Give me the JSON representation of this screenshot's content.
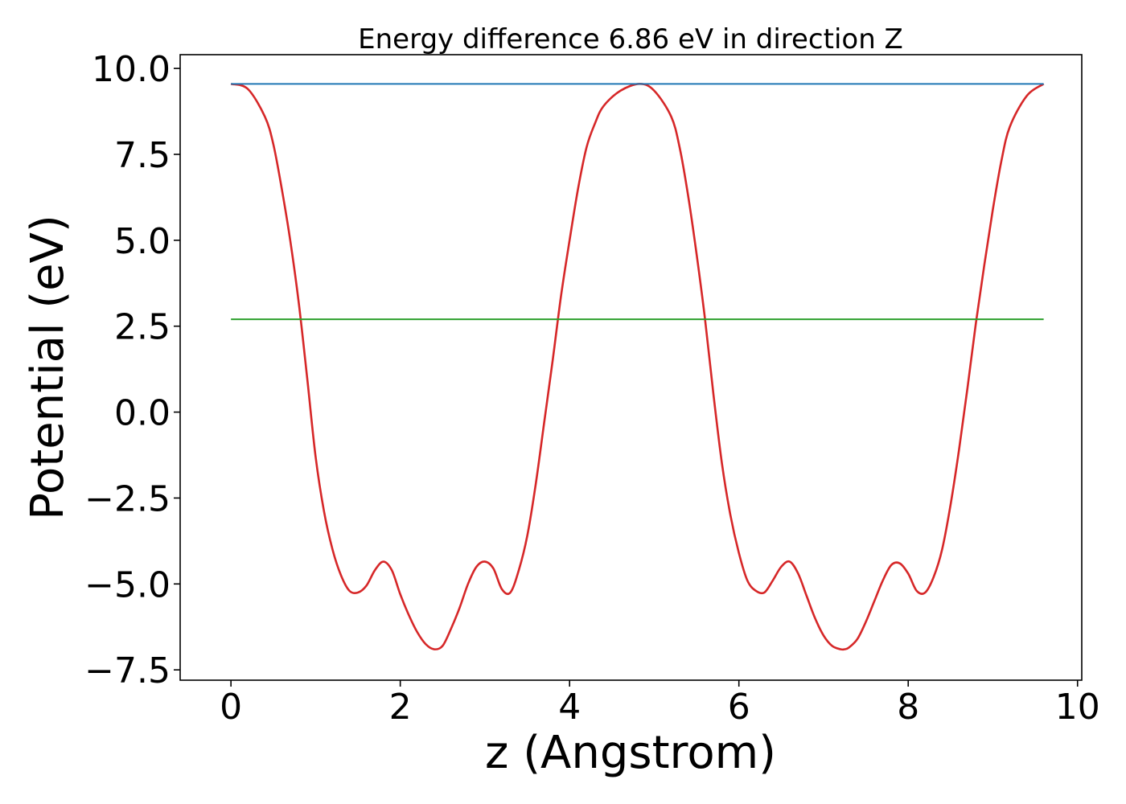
{
  "chart_data": {
    "type": "line",
    "title": "Energy difference 6.86 eV in direction Z",
    "xlabel": "z (Angstrom)",
    "ylabel": "Potential (eV)",
    "xlim": [
      -0.6,
      10.05
    ],
    "ylim": [
      -7.8,
      10.4
    ],
    "xticks": [
      0,
      2,
      4,
      6,
      8,
      10
    ],
    "xtick_labels": [
      "0",
      "2",
      "4",
      "6",
      "8",
      "10"
    ],
    "yticks": [
      10.0,
      7.5,
      5.0,
      2.5,
      0.0,
      -2.5,
      -5.0,
      -7.5
    ],
    "ytick_labels": [
      "10.0",
      "7.5",
      "5.0",
      "2.5",
      "0.0",
      "−2.5",
      "−5.0",
      "−7.5"
    ],
    "grid": false,
    "series": [
      {
        "color": "#d62728",
        "x": [
          0.0,
          0.2,
          0.4,
          0.5,
          0.6,
          0.7,
          0.8,
          0.9,
          1.0,
          1.1,
          1.2,
          1.3,
          1.4,
          1.5,
          1.6,
          1.7,
          1.8,
          1.9,
          2.0,
          2.1,
          2.2,
          2.3,
          2.4,
          2.5,
          2.6,
          2.7,
          2.8,
          2.9,
          3.0,
          3.1,
          3.2,
          3.3,
          3.4,
          3.5,
          3.6,
          3.7,
          3.8,
          3.9,
          4.0,
          4.1,
          4.2,
          4.3,
          4.4,
          4.6,
          4.83,
          5.0,
          5.2,
          5.3,
          5.4,
          5.5,
          5.6,
          5.7,
          5.8,
          5.9,
          6.0,
          6.1,
          6.2,
          6.3,
          6.4,
          6.5,
          6.6,
          6.7,
          6.8,
          6.9,
          7.0,
          7.1,
          7.2,
          7.25,
          7.3,
          7.4,
          7.5,
          7.6,
          7.7,
          7.8,
          7.9,
          8.0,
          8.1,
          8.2,
          8.3,
          8.4,
          8.5,
          8.6,
          8.7,
          8.8,
          8.9,
          9.0,
          9.1,
          9.2,
          9.4,
          9.6
        ],
        "y": [
          9.55,
          9.4,
          8.6,
          7.8,
          6.5,
          5.0,
          3.2,
          1.0,
          -1.3,
          -2.9,
          -4.0,
          -4.75,
          -5.2,
          -5.25,
          -5.05,
          -4.6,
          -4.35,
          -4.6,
          -5.3,
          -5.9,
          -6.4,
          -6.75,
          -6.9,
          -6.8,
          -6.3,
          -5.7,
          -5.0,
          -4.5,
          -4.35,
          -4.55,
          -5.15,
          -5.25,
          -4.6,
          -3.6,
          -2.1,
          -0.3,
          1.5,
          3.4,
          5.0,
          6.5,
          7.7,
          8.4,
          8.9,
          9.35,
          9.55,
          9.35,
          8.6,
          7.7,
          6.3,
          4.6,
          2.7,
          0.5,
          -1.5,
          -3.0,
          -4.1,
          -4.9,
          -5.2,
          -5.25,
          -4.9,
          -4.5,
          -4.35,
          -4.7,
          -5.35,
          -6.0,
          -6.5,
          -6.8,
          -6.9,
          -6.9,
          -6.85,
          -6.6,
          -6.1,
          -5.5,
          -4.9,
          -4.45,
          -4.4,
          -4.7,
          -5.2,
          -5.25,
          -4.8,
          -4.0,
          -2.7,
          -1.1,
          0.7,
          2.6,
          4.3,
          5.9,
          7.3,
          8.3,
          9.2,
          9.55
        ]
      },
      {
        "color": "#1f77b4",
        "x": [
          0.0,
          9.6
        ],
        "y": [
          9.55,
          9.55
        ]
      },
      {
        "color": "#2ca02c",
        "x": [
          0.0,
          9.6
        ],
        "y": [
          2.7,
          2.7
        ]
      }
    ]
  }
}
